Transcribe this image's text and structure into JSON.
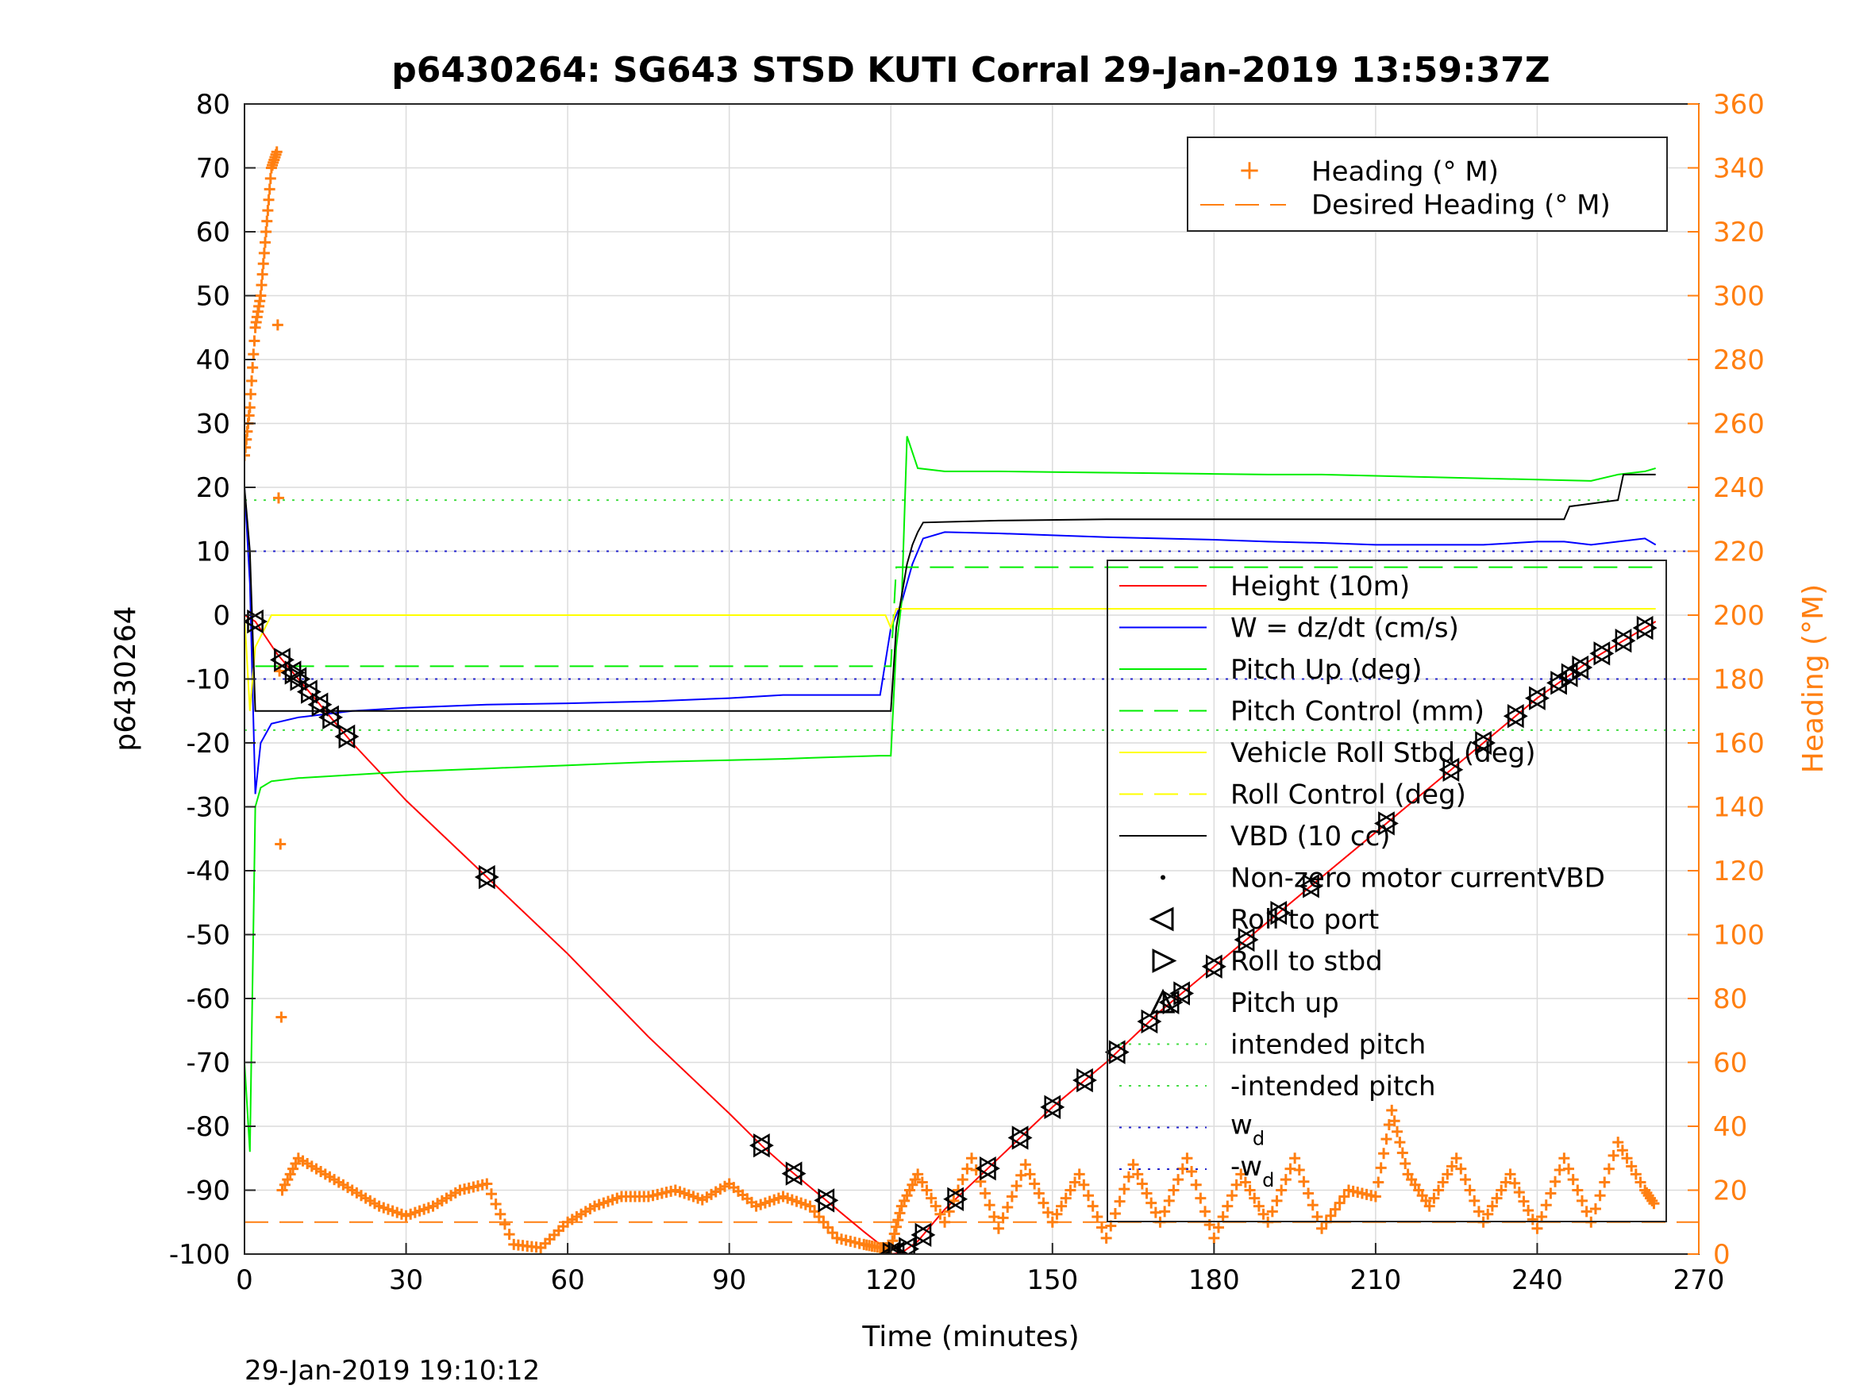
{
  "chart_data": {
    "type": "line",
    "title": "p6430264: SG643 STSD KUTI Corral 29-Jan-2019 13:59:37Z",
    "xlabel": "Time (minutes)",
    "ylabel": "p6430264",
    "y2label": "Heading (°M)",
    "footer": "29-Jan-2019 19:10:12",
    "xlim": [
      0,
      270
    ],
    "ylim": [
      -100,
      80
    ],
    "y2lim": [
      0,
      360
    ],
    "xticks": [
      "0",
      "30",
      "60",
      "90",
      "120",
      "150",
      "180",
      "210",
      "240",
      "270"
    ],
    "yticks": [
      "80",
      "70",
      "60",
      "50",
      "40",
      "30",
      "20",
      "10",
      "0",
      "-10",
      "-20",
      "-30",
      "-40",
      "-50",
      "-60",
      "-70",
      "-80",
      "-90",
      "-100"
    ],
    "y2ticks": [
      "360",
      "340",
      "320",
      "300",
      "280",
      "260",
      "240",
      "220",
      "200",
      "180",
      "160",
      "140",
      "120",
      "100",
      "80",
      "60",
      "40",
      "20",
      "0"
    ],
    "grid": true,
    "colors": {
      "height": "#ff0000",
      "w": "#0000ff",
      "pitch": "#00ee00",
      "roll": "#ffff00",
      "vbd": "#000000",
      "heading": "#ff7f11"
    },
    "legend_top": {
      "placement": "top-right",
      "entries": [
        "Heading (° M)",
        "Desired Heading (° M)"
      ]
    },
    "legend_main": {
      "placement": "right",
      "entries": [
        "Height (10m)",
        "W = dz/dt (cm/s)",
        "Pitch Up (deg)",
        "Pitch Control (mm)",
        "Vehicle Roll Stbd (deg)",
        "Roll Control (deg)",
        "VBD (10 cc)",
        "Non-zero motor currentVBD",
        "Roll to port",
        "Roll to stbd",
        "Pitch up",
        "intended pitch",
        "-intended pitch"
      ],
      "wd_base": "w",
      "wd_sub": "d",
      "neg_wd_base": "-w",
      "neg_wd_sub": "d"
    },
    "reference_lines": {
      "intended_pitch": 18,
      "neg_intended_pitch": -18,
      "w_d": 10,
      "neg_w_d": -10,
      "desired_heading": 10
    },
    "series": [
      {
        "name": "Height (10m)",
        "x": [
          0,
          2,
          6,
          10,
          15,
          20,
          30,
          45,
          60,
          75,
          90,
          96,
          100,
          105,
          110,
          115,
          118,
          120,
          122,
          125,
          130,
          140,
          150,
          160,
          170,
          180,
          190,
          200,
          210,
          220,
          230,
          240,
          250,
          260,
          262
        ],
        "y": [
          0,
          -1,
          -6,
          -10,
          -15,
          -20,
          -29,
          -41,
          -53,
          -66,
          -78,
          -83,
          -86,
          -89.5,
          -93,
          -96.5,
          -98.5,
          -100,
          -99.8,
          -98,
          -93,
          -85,
          -77,
          -70,
          -62,
          -55,
          -48,
          -41,
          -34,
          -27,
          -20,
          -13,
          -7,
          -2,
          -1
        ]
      },
      {
        "name": "W = dz/dt (cm/s)",
        "x": [
          0,
          1,
          2,
          3,
          5,
          10,
          20,
          30,
          45,
          60,
          75,
          90,
          100,
          110,
          118,
          120,
          122,
          124,
          126,
          130,
          140,
          150,
          160,
          170,
          180,
          190,
          200,
          210,
          220,
          230,
          240,
          245,
          250,
          255,
          260,
          262
        ],
        "y": [
          20,
          5,
          -28,
          -20,
          -17,
          -16,
          -15,
          -14.5,
          -14,
          -13.8,
          -13.5,
          -13,
          -12.5,
          -12.5,
          -12.5,
          -2,
          2,
          8,
          12,
          13,
          12.8,
          12.5,
          12.2,
          12,
          11.8,
          11.5,
          11.3,
          11,
          11,
          11,
          11.5,
          11.5,
          11,
          11.5,
          12,
          11
        ]
      },
      {
        "name": "Pitch Up (deg)",
        "x": [
          0,
          1,
          2,
          3,
          5,
          10,
          20,
          30,
          45,
          60,
          75,
          90,
          100,
          110,
          118,
          120,
          121,
          122,
          123,
          125,
          130,
          140,
          150,
          160,
          170,
          180,
          190,
          200,
          210,
          220,
          230,
          240,
          250,
          255,
          260,
          262
        ],
        "y": [
          -70,
          -84,
          -30,
          -27,
          -26,
          -25.5,
          -25,
          -24.5,
          -24,
          -23.5,
          -23,
          -22.7,
          -22.5,
          -22.2,
          -22,
          -22,
          -5,
          2,
          28,
          23,
          22.5,
          22.5,
          22.4,
          22.3,
          22.2,
          22.1,
          22,
          22,
          21.8,
          21.6,
          21.4,
          21.2,
          21,
          22,
          22.5,
          23
        ]
      },
      {
        "name": "Pitch Control (mm)",
        "x": [
          2,
          120,
          121,
          262
        ],
        "y": [
          -8,
          -8,
          7.5,
          7.5
        ]
      },
      {
        "name": "Vehicle Roll Stbd (deg)",
        "x": [
          0,
          1,
          2,
          5,
          10,
          20,
          40,
          60,
          80,
          100,
          119,
          120,
          121,
          140,
          160,
          180,
          200,
          220,
          240,
          260,
          262
        ],
        "y": [
          0,
          -15,
          -5,
          0,
          0,
          0,
          0,
          0,
          0,
          0,
          0,
          -2,
          1,
          1,
          1,
          1,
          1,
          1,
          1,
          1,
          1
        ]
      },
      {
        "name": "VBD (10 cc)",
        "x": [
          0,
          1,
          2,
          119,
          120,
          121,
          122,
          123,
          124,
          125,
          126,
          140,
          160,
          180,
          200,
          220,
          230,
          245,
          246,
          255,
          256,
          262
        ],
        "y": [
          20,
          10,
          -15,
          -15,
          -15,
          -2,
          3,
          8,
          11,
          13,
          14.5,
          14.8,
          15,
          15,
          15,
          15,
          15,
          15,
          17,
          18,
          22,
          22
        ]
      },
      {
        "name": "Heading (° M)",
        "axis": "right",
        "x": [
          0,
          1,
          2,
          3,
          4,
          5,
          6,
          7,
          10,
          15,
          20,
          25,
          30,
          35,
          40,
          45,
          50,
          55,
          60,
          65,
          70,
          75,
          80,
          85,
          90,
          95,
          100,
          105,
          110,
          115,
          118,
          120,
          122,
          125,
          130,
          135,
          140,
          145,
          150,
          155,
          160,
          165,
          170,
          175,
          180,
          185,
          190,
          195,
          200,
          205,
          210,
          213,
          216,
          220,
          225,
          230,
          235,
          240,
          245,
          250,
          255,
          260,
          262
        ],
        "y": [
          250,
          265,
          290,
          300,
          320,
          340,
          345,
          20,
          30,
          25,
          20,
          15,
          12,
          15,
          20,
          22,
          3,
          2,
          10,
          15,
          18,
          18,
          20,
          17,
          22,
          15,
          18,
          15,
          5,
          3,
          2,
          2,
          15,
          25,
          10,
          30,
          8,
          28,
          10,
          25,
          5,
          28,
          10,
          30,
          5,
          25,
          10,
          30,
          8,
          20,
          18,
          45,
          25,
          15,
          30,
          10,
          25,
          8,
          30,
          10,
          35,
          20,
          15
        ]
      }
    ]
  }
}
